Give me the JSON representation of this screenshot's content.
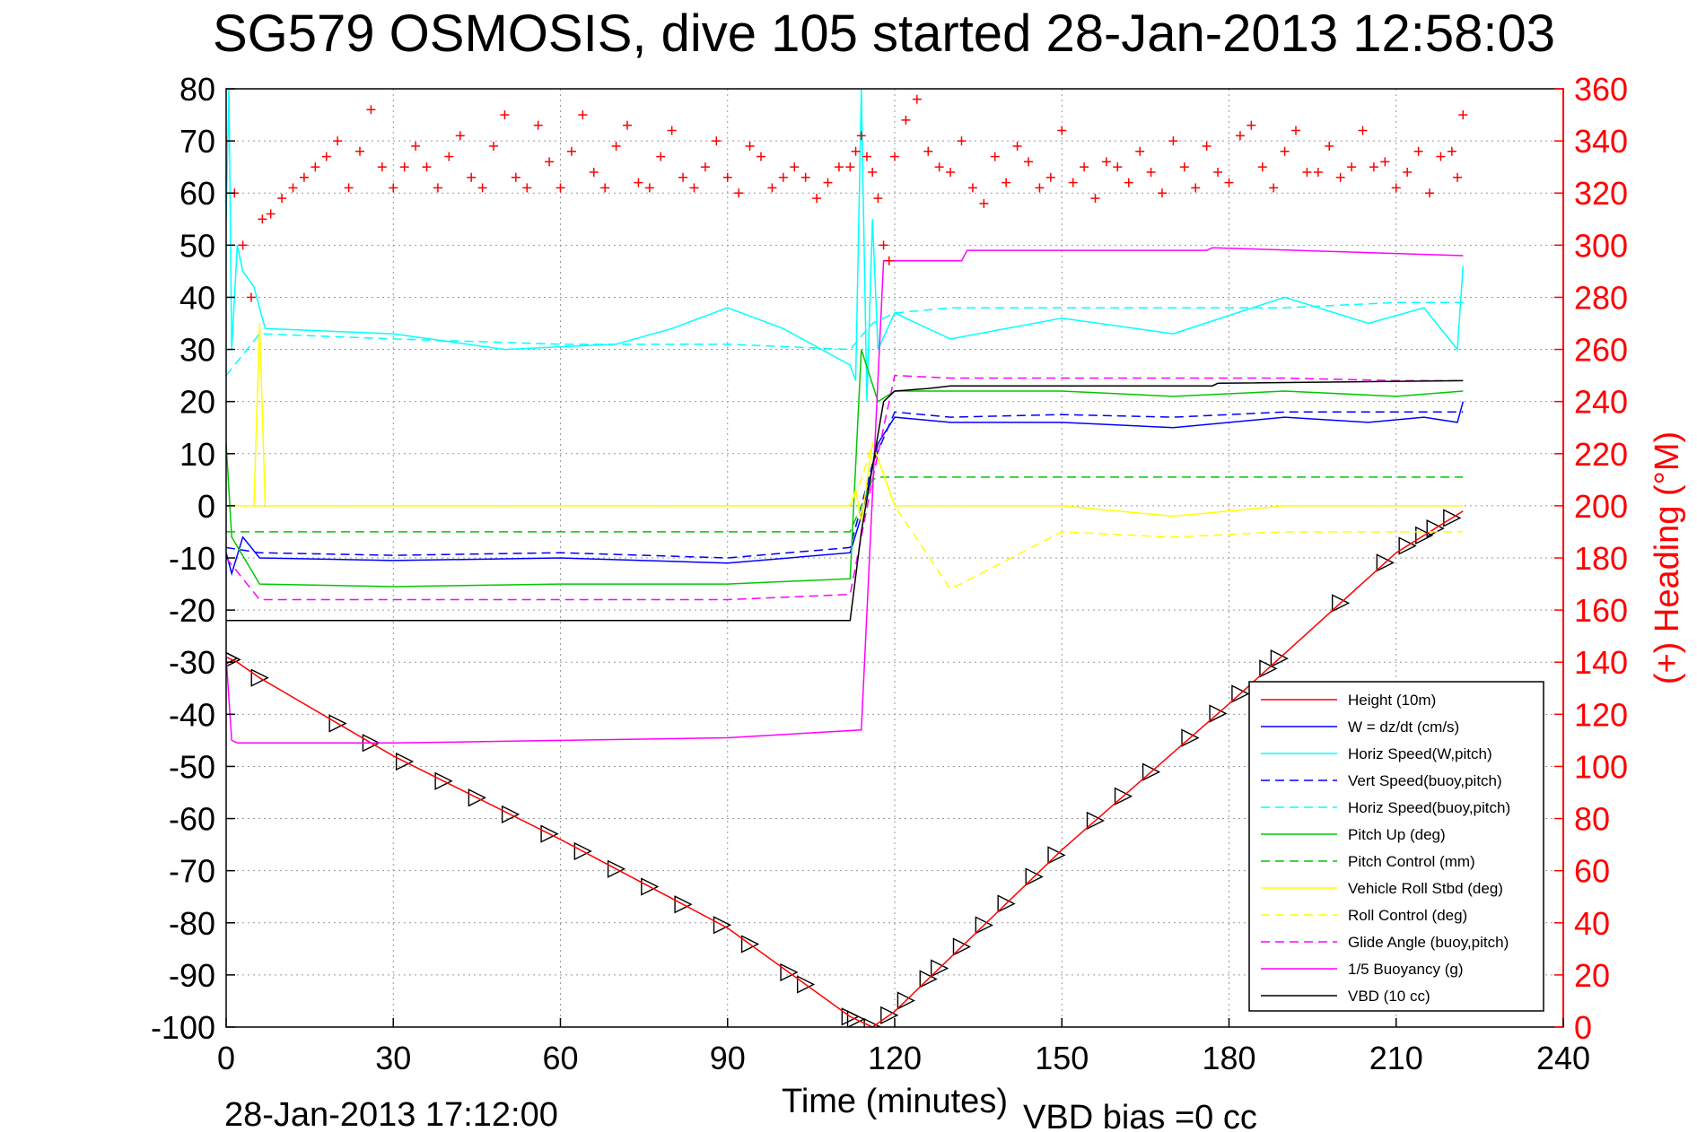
{
  "chart_data": {
    "type": "line",
    "title": "SG579 OSMOSIS, dive 105 started 28-Jan-2013 12:58:03",
    "xlabel": "Time (minutes)",
    "ylabel_right": "(+) Heading (°M)",
    "footer_left": "28-Jan-2013 17:12:00",
    "footer_right": "VBD bias =0 cc",
    "xlim": [
      0,
      240
    ],
    "ylim_left": [
      -100,
      80
    ],
    "ylim_right": [
      0,
      360
    ],
    "grid": true,
    "legend_position": "lower-right",
    "x_ticks": [
      "0",
      "30",
      "60",
      "90",
      "120",
      "150",
      "180",
      "210",
      "240"
    ],
    "y_ticks_left": [
      "80",
      "70",
      "60",
      "50",
      "40",
      "30",
      "20",
      "10",
      "0",
      "-10",
      "-20",
      "-30",
      "-40",
      "-50",
      "-60",
      "-70",
      "-80",
      "-90",
      "-100"
    ],
    "y_ticks_right": [
      "360",
      "340",
      "320",
      "300",
      "280",
      "260",
      "240",
      "220",
      "200",
      "180",
      "160",
      "140",
      "120",
      "100",
      "80",
      "60",
      "40",
      "20",
      "0"
    ],
    "series": [
      {
        "name": "Height (10m)",
        "color": "#ff0000",
        "style": "solid",
        "x": [
          0,
          2,
          6,
          30,
          60,
          90,
          112,
          116,
          120,
          150,
          180,
          210,
          222
        ],
        "y": [
          -29,
          -30,
          -33,
          -48,
          -64,
          -81,
          -98,
          -100,
          -97,
          -66,
          -38,
          -9,
          -1
        ]
      },
      {
        "name": "W = dz/dt (cm/s)",
        "color": "#0000ff",
        "style": "solid",
        "x": [
          0,
          1,
          3,
          6,
          30,
          60,
          90,
          112,
          114,
          117,
          120,
          130,
          150,
          170,
          190,
          205,
          215,
          221,
          222
        ],
        "y": [
          -9,
          -13,
          -6,
          -10,
          -10.5,
          -10,
          -11,
          -9,
          -2,
          12,
          17,
          16,
          16,
          15,
          17,
          16,
          17,
          16,
          20
        ]
      },
      {
        "name": "Horiz Speed(W,pitch)",
        "color": "#00ffff",
        "style": "solid",
        "x": [
          0,
          0.5,
          1,
          2,
          3,
          5,
          7,
          30,
          50,
          70,
          80,
          90,
          95,
          100,
          112,
          113,
          114,
          115,
          116,
          117,
          120,
          130,
          150,
          170,
          190,
          205,
          215,
          221,
          222
        ],
        "y": [
          55,
          80,
          30,
          50,
          45,
          42,
          34,
          33,
          30,
          31,
          34,
          38,
          36,
          34,
          27,
          24,
          80,
          20,
          55,
          30,
          37,
          32,
          36,
          33,
          40,
          35,
          38,
          30,
          46
        ]
      },
      {
        "name": "Vert Speed(buoy,pitch)",
        "color": "#0000ff",
        "style": "dashed",
        "x": [
          0,
          6,
          30,
          60,
          90,
          112,
          116,
          120,
          130,
          150,
          170,
          190,
          210,
          222
        ],
        "y": [
          -8,
          -9,
          -9.5,
          -9,
          -10,
          -8,
          8,
          18,
          17,
          17.5,
          17,
          18,
          18,
          18
        ]
      },
      {
        "name": "Horiz Speed(buoy,pitch)",
        "color": "#00ffff",
        "style": "dashed",
        "x": [
          0,
          6,
          30,
          60,
          90,
          112,
          116,
          120,
          130,
          150,
          170,
          190,
          210,
          222
        ],
        "y": [
          25,
          33,
          32,
          31,
          31,
          30,
          35,
          37,
          38,
          38,
          38,
          38,
          39,
          39
        ]
      },
      {
        "name": "Pitch Up (deg)",
        "color": "#00c800",
        "style": "solid",
        "x": [
          0,
          1,
          6,
          30,
          60,
          90,
          112,
          114,
          117,
          120,
          130,
          150,
          170,
          190,
          210,
          222
        ],
        "y": [
          12,
          -6,
          -15,
          -15.5,
          -15,
          -15,
          -14,
          30,
          20,
          22,
          22,
          22,
          21,
          22,
          21,
          22
        ]
      },
      {
        "name": "Pitch Control (mm)",
        "color": "#00c800",
        "style": "dashed",
        "x": [
          0,
          6,
          112,
          116,
          117,
          222
        ],
        "y": [
          -5,
          -5,
          -5,
          5,
          5.5,
          5.5
        ]
      },
      {
        "name": "Vehicle Roll Stbd (deg)",
        "color": "#ffff00",
        "style": "solid",
        "x": [
          0,
          5,
          6,
          7,
          20,
          30,
          40,
          50,
          60,
          70,
          80,
          90,
          100,
          112,
          113,
          114,
          116,
          120,
          125,
          150,
          170,
          190,
          210,
          222
        ],
        "y": [
          0,
          0,
          35,
          0,
          0,
          0,
          0,
          0,
          0,
          0,
          0,
          0,
          0,
          0,
          3,
          -3,
          12,
          0,
          0,
          0,
          -2,
          0,
          0,
          0
        ]
      },
      {
        "name": "Roll Control (deg)",
        "color": "#ffff00",
        "style": "dashed",
        "x": [
          0,
          6,
          20,
          40,
          60,
          80,
          100,
          112,
          114,
          116,
          120,
          130,
          150,
          170,
          190,
          210,
          222
        ],
        "y": [
          0,
          0,
          0,
          0,
          0,
          0,
          0,
          0,
          5,
          12,
          0,
          -16,
          -5,
          -6,
          -5,
          -5,
          -5
        ]
      },
      {
        "name": "Glide Angle (buoy,pitch)",
        "color": "#ff00ff",
        "style": "dashed",
        "x": [
          0,
          6,
          30,
          60,
          90,
          112,
          116,
          120,
          130,
          150,
          170,
          190,
          210,
          222
        ],
        "y": [
          -10,
          -18,
          -18,
          -18,
          -18,
          -17,
          5,
          25,
          24.5,
          24.5,
          24.5,
          24.5,
          24,
          24
        ]
      },
      {
        "name": "1/5 Buoyancy (g)",
        "color": "#ff00ff",
        "style": "solid",
        "x": [
          0,
          1,
          2,
          30,
          60,
          90,
          114,
          118,
          120,
          132,
          133,
          176,
          177,
          222
        ],
        "y": [
          -29,
          -45,
          -45.5,
          -45.5,
          -45,
          -44.5,
          -43,
          47,
          47,
          47,
          49,
          49,
          49.5,
          48
        ]
      },
      {
        "name": "VBD (10 cc)",
        "color": "#000000",
        "style": "solid",
        "x": [
          0,
          1,
          112,
          114,
          118,
          120,
          126,
          130,
          160,
          177,
          178,
          222
        ],
        "y": [
          -22,
          -22,
          -22,
          -5,
          20,
          22,
          22.5,
          23,
          23,
          23,
          23.5,
          24
        ]
      }
    ],
    "heading_series": {
      "name": "Heading",
      "axis": "right",
      "color": "#ff0000",
      "marker": "+",
      "x": [
        0,
        1.5,
        3,
        4.5,
        6.5,
        8,
        10,
        12,
        14,
        16,
        18,
        20,
        22,
        24,
        26,
        28,
        30,
        32,
        34,
        36,
        38,
        40,
        42,
        44,
        46,
        48,
        50,
        52,
        54,
        56,
        58,
        60,
        62,
        64,
        66,
        68,
        70,
        72,
        74,
        76,
        78,
        80,
        82,
        84,
        86,
        88,
        90,
        92,
        94,
        96,
        98,
        100,
        102,
        104,
        106,
        108,
        110,
        112,
        113,
        114,
        115,
        116,
        117,
        118,
        119,
        120,
        122,
        124,
        126,
        128,
        130,
        132,
        134,
        136,
        138,
        140,
        142,
        144,
        146,
        148,
        150,
        152,
        154,
        156,
        158,
        160,
        162,
        164,
        166,
        168,
        170,
        172,
        174,
        176,
        178,
        180,
        182,
        184,
        186,
        188,
        190,
        192,
        194,
        196,
        198,
        200,
        202,
        204,
        206,
        208,
        210,
        212,
        214,
        216,
        218,
        220,
        221,
        222
      ],
      "y": [
        340,
        320,
        300,
        280,
        310,
        312,
        318,
        322,
        326,
        330,
        334,
        340,
        322,
        336,
        352,
        330,
        322,
        330,
        338,
        330,
        322,
        334,
        342,
        326,
        322,
        338,
        350,
        326,
        322,
        346,
        332,
        322,
        336,
        350,
        328,
        322,
        338,
        346,
        324,
        322,
        334,
        344,
        326,
        322,
        330,
        340,
        326,
        320,
        338,
        334,
        322,
        326,
        330,
        326,
        318,
        324,
        330,
        330,
        336,
        342,
        334,
        328,
        318,
        300,
        294,
        334,
        348,
        356,
        336,
        330,
        328,
        340,
        322,
        316,
        334,
        324,
        338,
        332,
        322,
        326,
        344,
        324,
        330,
        318,
        332,
        330,
        324,
        336,
        328,
        320,
        340,
        330,
        322,
        338,
        328,
        324,
        342,
        346,
        330,
        322,
        336,
        344,
        328,
        328,
        338,
        326,
        330,
        344,
        330,
        332,
        322,
        328,
        336,
        320,
        334,
        336,
        326,
        350
      ]
    },
    "depth_markers": {
      "marker": "triangle",
      "color": "#000000",
      "x": [
        0.5,
        1,
        6,
        20,
        26,
        32,
        39,
        45,
        51,
        58,
        64,
        70,
        76,
        82,
        89,
        94,
        101,
        104,
        112,
        113,
        116,
        119,
        122,
        126,
        128,
        132,
        136,
        140,
        145,
        149,
        156,
        161,
        166,
        173,
        178,
        182,
        187,
        189,
        200,
        208,
        212,
        215,
        217,
        220
      ]
    }
  },
  "legend": {
    "entries": [
      {
        "label": "Height (10m)",
        "color": "#ff0000",
        "dash": "solid"
      },
      {
        "label": "W = dz/dt (cm/s)",
        "color": "#0000ff",
        "dash": "solid"
      },
      {
        "label": "Horiz Speed(W,pitch)",
        "color": "#00ffff",
        "dash": "solid"
      },
      {
        "label": "Vert Speed(buoy,pitch)",
        "color": "#0000ff",
        "dash": "dashed"
      },
      {
        "label": "Horiz Speed(buoy,pitch)",
        "color": "#00ffff",
        "dash": "dashed"
      },
      {
        "label": "Pitch Up (deg)",
        "color": "#00c800",
        "dash": "solid"
      },
      {
        "label": "Pitch Control (mm)",
        "color": "#00c800",
        "dash": "dashed"
      },
      {
        "label": "Vehicle Roll Stbd (deg)",
        "color": "#ffff00",
        "dash": "solid"
      },
      {
        "label": "Roll Control (deg)",
        "color": "#ffff00",
        "dash": "dashed"
      },
      {
        "label": "Glide Angle (buoy,pitch)",
        "color": "#ff00ff",
        "dash": "dashed"
      },
      {
        "label": "1/5 Buoyancy (g)",
        "color": "#ff00ff",
        "dash": "solid"
      },
      {
        "label": "VBD (10 cc)",
        "color": "#000000",
        "dash": "solid"
      }
    ]
  }
}
